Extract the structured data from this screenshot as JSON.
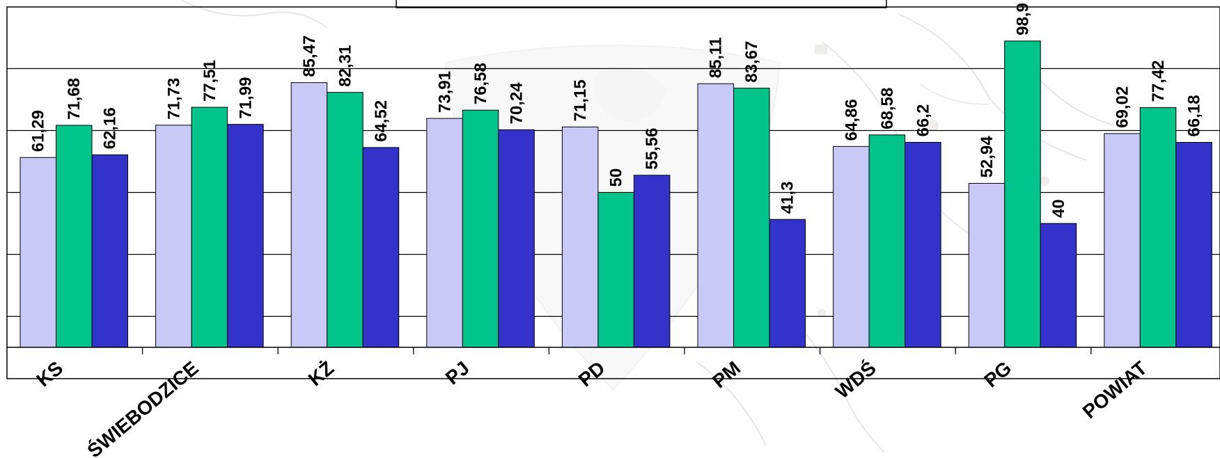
{
  "chart_data": {
    "type": "bar",
    "categories": [
      "KS",
      "ŚWIEBODZICE",
      "KŻ",
      "PJ",
      "PD",
      "PM",
      "WDŚ",
      "PG",
      "POWIAT"
    ],
    "series": [
      {
        "color": "#c9c9f7",
        "values": [
          61.29,
          71.73,
          85.47,
          73.91,
          71.15,
          85.11,
          64.86,
          52.94,
          69.02
        ],
        "labels": [
          "61,29",
          "71,73",
          "85,47",
          "73,91",
          "71,15",
          "85,11",
          "64,86",
          "52,94",
          "69,02"
        ]
      },
      {
        "color": "#00c48a",
        "values": [
          71.68,
          77.51,
          82.31,
          76.58,
          50,
          83.67,
          68.58,
          98.9,
          77.42
        ],
        "labels": [
          "71,68",
          "77,51",
          "82,31",
          "76,58",
          "50",
          "83,67",
          "68,58",
          "98,9",
          "77,42"
        ]
      },
      {
        "color": "#3333cc",
        "values": [
          62.16,
          71.99,
          64.52,
          70.24,
          55.56,
          41.3,
          66.2,
          40,
          66.18
        ],
        "labels": [
          "62,16",
          "71,99",
          "64,52",
          "70,24",
          "55,56",
          "41,3",
          "66,2",
          "40",
          "66,18"
        ]
      }
    ],
    "ylim": [
      0,
      100
    ],
    "grid": true,
    "legend": "none",
    "background": "faded map watermark"
  }
}
